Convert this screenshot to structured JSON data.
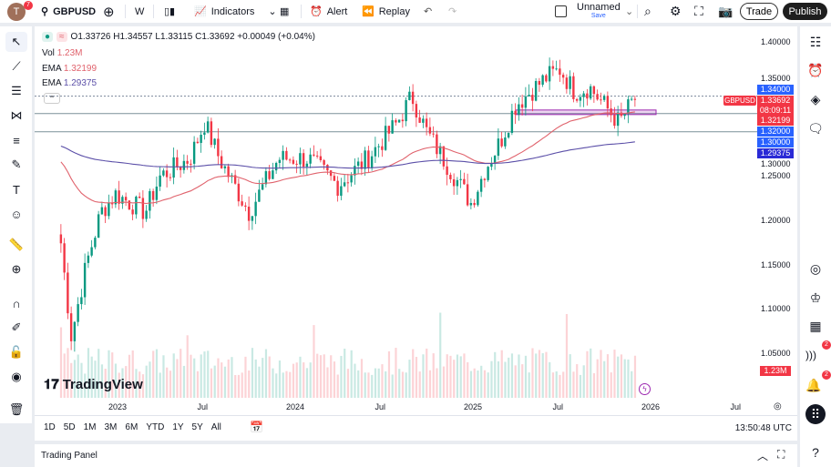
{
  "toolbar": {
    "avatar_letter": "T",
    "avatar_badge": "7",
    "symbol": "GBPUSD",
    "interval": "W",
    "indicators_label": "Indicators",
    "alert_label": "Alert",
    "replay_label": "Replay",
    "layout_name": "Unnamed",
    "layout_save": "Save",
    "trade_label": "Trade",
    "publish_label": "Publish"
  },
  "legend": {
    "ohlc": "O1.33726 H1.34557 L1.33115 C1.33692 +0.00049 (+0.04%)",
    "vol_label": "Vol",
    "vol_value": "1.23M",
    "ema1_label": "EMA",
    "ema1_value": "1.32199",
    "ema2_label": "EMA",
    "ema2_value": "1.29375"
  },
  "price_axis": {
    "ticks": [
      "1.40000",
      "1.35000",
      "1.30000",
      "1.25000",
      "1.20000",
      "1.15000",
      "1.10000",
      "1.05000"
    ],
    "labels": {
      "symbol": "GBPUSD",
      "l1": "1.34000",
      "last": "1.33692",
      "countdown": "08:09:11",
      "ema1": "1.32199",
      "l2": "1.32000",
      "l3": "1.30000",
      "ema2": "1.29375",
      "vol": "1.23M"
    }
  },
  "time_axis": [
    "2023",
    "Jul",
    "2024",
    "Jul",
    "2025",
    "Jul",
    "2026",
    "Jul"
  ],
  "ranges": [
    "1D",
    "5D",
    "1M",
    "3M",
    "6M",
    "YTD",
    "1Y",
    "5Y",
    "All"
  ],
  "clock": "13:50:48 UTC",
  "logo": "TradingView",
  "trading_panel": "Trading Panel",
  "colors": {
    "up": "#089981",
    "down": "#f23645",
    "ema_fast": "#e0626c",
    "ema_slow": "#5b4fa8",
    "level_blue": "#2962ff"
  },
  "chart_data": {
    "type": "candlestick",
    "symbol": "GBPUSD",
    "interval": "W",
    "ylim": [
      1.03,
      1.41
    ],
    "approx_closes": [
      [
        "2022-09",
        1.22
      ],
      [
        "2022-10",
        1.07
      ],
      [
        "2022-11",
        1.15
      ],
      [
        "2022-12",
        1.21
      ],
      [
        "2023-01",
        1.23
      ],
      [
        "2023-03",
        1.21
      ],
      [
        "2023-04",
        1.25
      ],
      [
        "2023-06",
        1.27
      ],
      [
        "2023-07",
        1.31
      ],
      [
        "2023-08",
        1.27
      ],
      [
        "2023-10",
        1.21
      ],
      [
        "2023-12",
        1.27
      ],
      [
        "2024-02",
        1.27
      ],
      [
        "2024-04",
        1.24
      ],
      [
        "2024-06",
        1.27
      ],
      [
        "2024-08",
        1.31
      ],
      [
        "2024-09",
        1.34
      ],
      [
        "2024-10",
        1.3
      ],
      [
        "2025-01",
        1.22
      ],
      [
        "2025-02",
        1.26
      ],
      [
        "2025-03",
        1.29
      ],
      [
        "2025-04",
        1.33
      ],
      [
        "2025-06",
        1.36
      ],
      [
        "2025-07",
        1.37
      ],
      [
        "2025-08",
        1.345
      ],
      [
        "2025-09",
        1.35
      ],
      [
        "2025-10",
        1.33
      ],
      [
        "2025-11",
        1.31
      ],
      [
        "2025-12",
        1.33692
      ]
    ],
    "levels": [
      1.34,
      1.32199,
      1.32
    ]
  }
}
